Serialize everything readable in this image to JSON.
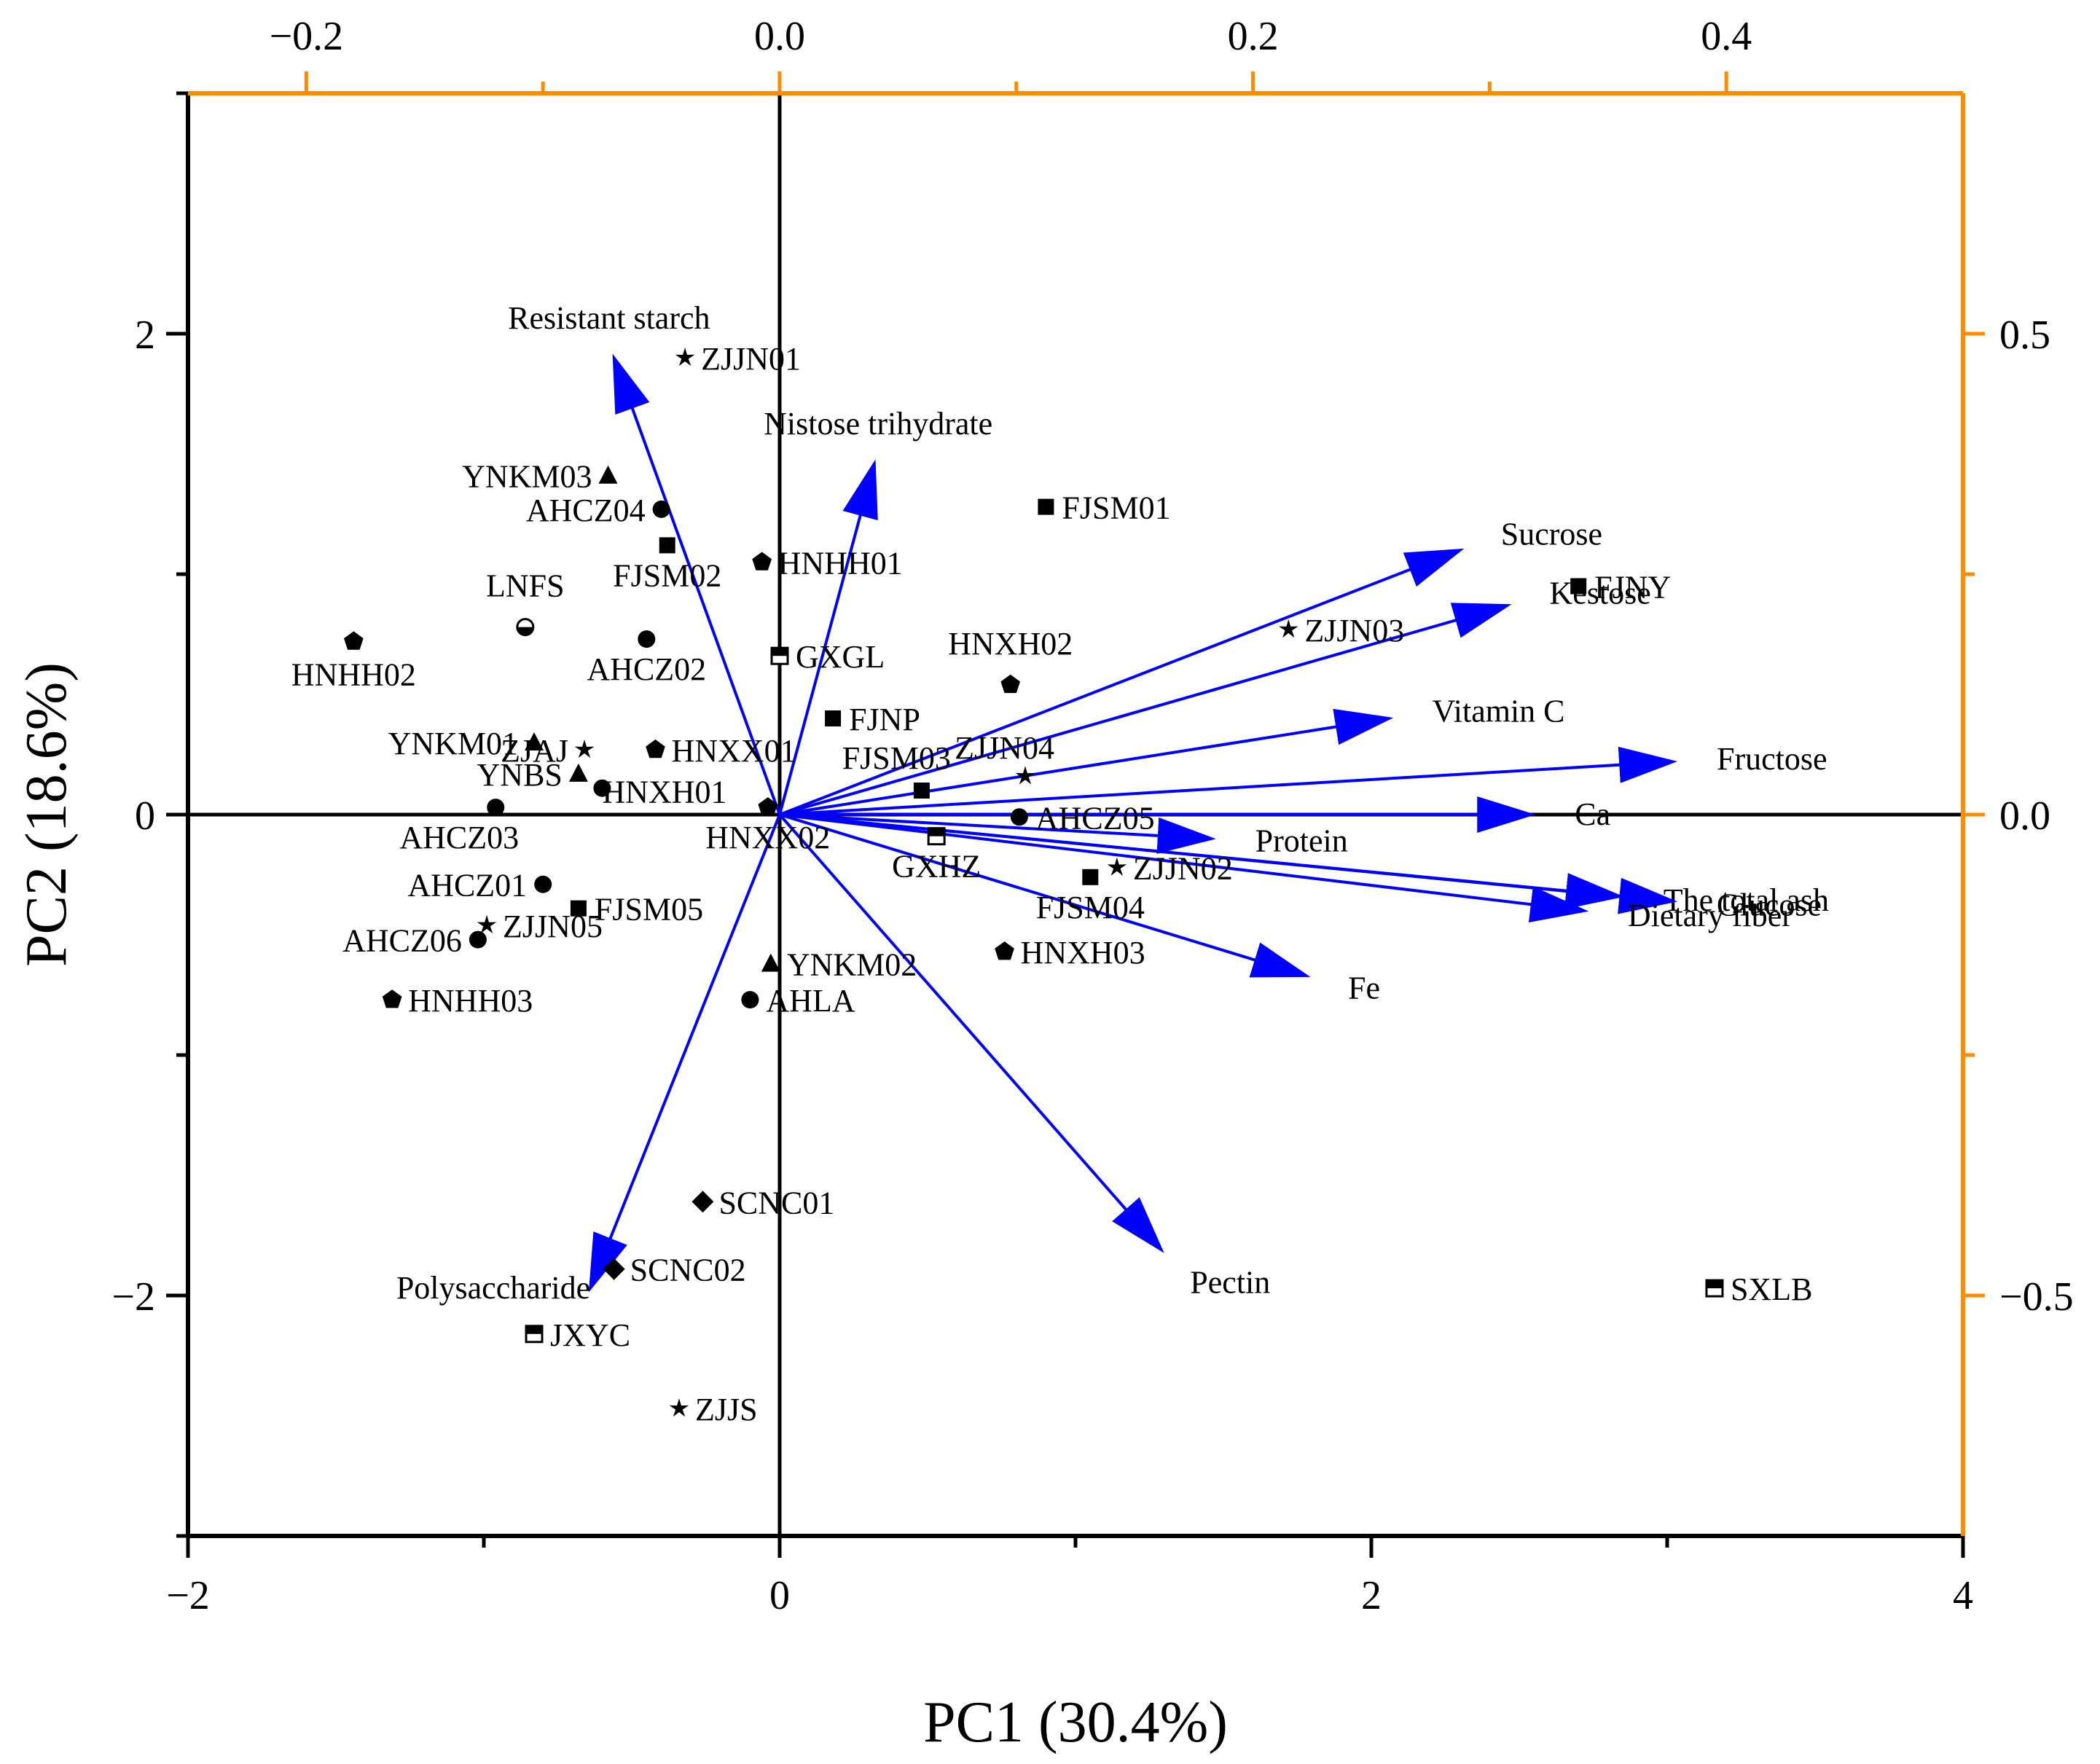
{
  "chart_data": {
    "type": "scatter",
    "subtype": "PCA biplot",
    "title": "",
    "xlabel": "PC1 (30.4%)",
    "ylabel": "PC2 (18.6%)",
    "xlim": [
      -2,
      4
    ],
    "ylim": [
      -3,
      3
    ],
    "xticks": [
      -2,
      0,
      2,
      4
    ],
    "xtick_labels": [
      "−2",
      "0",
      "2",
      "4"
    ],
    "yticks": [
      -2,
      0,
      2
    ],
    "ytick_labels": [
      "−2",
      "0",
      "2"
    ],
    "top_axis": {
      "lim": [
        -0.25,
        0.5
      ],
      "ticks": [
        -0.2,
        0.0,
        0.2,
        0.4
      ],
      "tick_labels": [
        "−0.2",
        "0.0",
        "0.2",
        "0.4"
      ],
      "minor_ticks": [
        -0.1,
        0.1,
        0.3
      ],
      "color": "#ff8c00"
    },
    "right_axis": {
      "lim": [
        -0.75,
        0.75
      ],
      "ticks": [
        -0.5,
        0.0,
        0.5
      ],
      "tick_labels": [
        "−0.5",
        "0.0",
        "0.5"
      ],
      "minor_ticks": [
        -0.25,
        0.25
      ],
      "color": "#ff8c00"
    },
    "vector_color": "#0000ff",
    "points": [
      {
        "label": "ZJJN01",
        "marker": "star",
        "x": -0.32,
        "y": 1.9
      },
      {
        "label": "YNKM03",
        "marker": "triangle",
        "x": -0.58,
        "y": 1.41
      },
      {
        "label": "AHCZ04",
        "marker": "circle",
        "x": -0.4,
        "y": 1.27
      },
      {
        "label": "FJSM02",
        "marker": "square",
        "x": -0.38,
        "y": 1.12
      },
      {
        "label": "HNHH01",
        "marker": "pentagon",
        "x": -0.06,
        "y": 1.05
      },
      {
        "label": "FJSM01",
        "marker": "square",
        "x": 0.9,
        "y": 1.28
      },
      {
        "label": "LNFS",
        "marker": "halfcircle",
        "x": -0.86,
        "y": 0.78
      },
      {
        "label": "HNHH02",
        "marker": "pentagon",
        "x": -1.44,
        "y": 0.72
      },
      {
        "label": "AHCZ02",
        "marker": "circle",
        "x": -0.45,
        "y": 0.73
      },
      {
        "label": "GXGL",
        "marker": "halfsquare",
        "x": 0.0,
        "y": 0.66
      },
      {
        "label": "HNXH02",
        "marker": "pentagon",
        "x": 0.78,
        "y": 0.54
      },
      {
        "label": "FJNY",
        "marker": "square",
        "x": 2.7,
        "y": 0.95
      },
      {
        "label": "ZJJN03",
        "marker": "star",
        "x": 1.72,
        "y": 0.77
      },
      {
        "label": "FJNP",
        "marker": "square",
        "x": 0.18,
        "y": 0.4
      },
      {
        "label": "YNKM01",
        "marker": "triangle",
        "x": -0.83,
        "y": 0.3
      },
      {
        "label": "ZJAJ",
        "marker": "star",
        "x": -0.66,
        "y": 0.27
      },
      {
        "label": "HNXX01",
        "marker": "pentagon",
        "x": -0.42,
        "y": 0.27
      },
      {
        "label": "ZJJN04",
        "marker": "star",
        "x": 0.83,
        "y": 0.16
      },
      {
        "label": "FJSM03",
        "marker": "square",
        "x": 0.48,
        "y": 0.1
      },
      {
        "label": "YNBS",
        "marker": "triangle",
        "x": -0.68,
        "y": 0.17
      },
      {
        "label": "HNXH01",
        "marker": "circle",
        "x": -0.6,
        "y": 0.11
      },
      {
        "label": "AHCZ03",
        "marker": "circle",
        "x": -0.96,
        "y": 0.03
      },
      {
        "label": "HNXX02",
        "marker": "pentagon",
        "x": -0.04,
        "y": 0.03
      },
      {
        "label": "AHCZ05",
        "marker": "circle",
        "x": 0.81,
        "y": -0.01
      },
      {
        "label": "GXHZ",
        "marker": "halfsquare",
        "x": 0.53,
        "y": -0.09
      },
      {
        "label": "FJSM04",
        "marker": "square",
        "x": 1.05,
        "y": -0.26
      },
      {
        "label": "ZJJN02",
        "marker": "star",
        "x": 1.14,
        "y": -0.22
      },
      {
        "label": "AHCZ01",
        "marker": "circle",
        "x": -0.8,
        "y": -0.29
      },
      {
        "label": "FJSM05",
        "marker": "square",
        "x": -0.68,
        "y": -0.39
      },
      {
        "label": "AHCZ06",
        "marker": "circle",
        "x": -1.02,
        "y": -0.52
      },
      {
        "label": "ZJJN05",
        "marker": "star",
        "x": -0.99,
        "y": -0.46
      },
      {
        "label": "HNXH03",
        "marker": "pentagon",
        "x": 0.76,
        "y": -0.57
      },
      {
        "label": "YNKM02",
        "marker": "triangle",
        "x": -0.03,
        "y": -0.62
      },
      {
        "label": "AHLA",
        "marker": "circle",
        "x": -0.1,
        "y": -0.77
      },
      {
        "label": "HNHH03",
        "marker": "pentagon",
        "x": -1.31,
        "y": -0.77
      },
      {
        "label": "SCNC01",
        "marker": "diamond",
        "x": -0.26,
        "y": -1.61
      },
      {
        "label": "SCNC02",
        "marker": "diamond",
        "x": -0.56,
        "y": -1.89
      },
      {
        "label": "JXYC",
        "marker": "halfsquare",
        "x": -0.83,
        "y": -2.16
      },
      {
        "label": "ZJJS",
        "marker": "star",
        "x": -0.34,
        "y": -2.47
      },
      {
        "label": "SXLB",
        "marker": "halfsquare",
        "x": 3.16,
        "y": -1.97
      }
    ],
    "vectors": [
      {
        "label": "Resistant starch",
        "x": -0.56,
        "y": 1.9
      },
      {
        "label": "Nistose trihydrate",
        "x": 0.32,
        "y": 1.46
      },
      {
        "label": "Sucrose",
        "x": 2.3,
        "y": 1.1
      },
      {
        "label": "Kestose",
        "x": 2.46,
        "y": 0.87
      },
      {
        "label": "Vitamin C",
        "x": 2.06,
        "y": 0.4
      },
      {
        "label": "Fructose",
        "x": 3.02,
        "y": 0.22
      },
      {
        "label": "Ca",
        "x": 2.54,
        "y": 0.0
      },
      {
        "label": "Protein",
        "x": 1.46,
        "y": -0.1
      },
      {
        "label": "The total ash",
        "x": 2.84,
        "y": -0.34
      },
      {
        "label": "Glucose",
        "x": 3.02,
        "y": -0.36
      },
      {
        "label": "Dietary fiber",
        "x": 2.72,
        "y": -0.4
      },
      {
        "label": "Fe",
        "x": 1.78,
        "y": -0.67
      },
      {
        "label": "Pectin",
        "x": 1.29,
        "y": -1.81
      },
      {
        "label": "Polysaccharide",
        "x": -0.64,
        "y": -1.97
      }
    ]
  }
}
